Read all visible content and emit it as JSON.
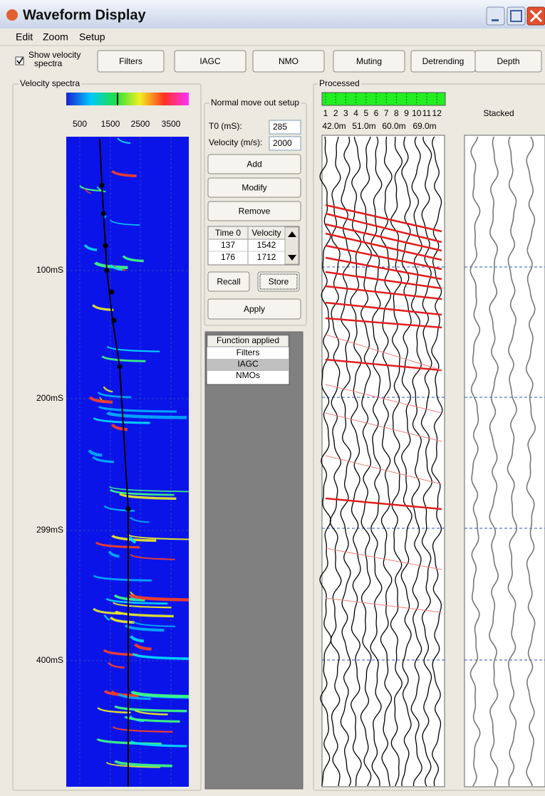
{
  "window": {
    "title": "Waveform Display"
  },
  "menu": [
    "Edit",
    "Zoom",
    "Setup"
  ],
  "toolbar": {
    "checkbox": "Show velocity spectra",
    "buttons": [
      "Filters",
      "IAGC",
      "NMO",
      "Muting",
      "Detrending",
      "Depth"
    ]
  },
  "velocity_spectra": {
    "title": "Velocity spectra",
    "velocity_labels": [
      500,
      1500,
      2500,
      3500
    ],
    "time_labels": [
      "100mS",
      "200mS",
      "299mS",
      "400mS"
    ]
  },
  "nmo_setup": {
    "title": "Normal move out setup",
    "fields": [
      {
        "label": "T0 (mS):",
        "value": 285
      },
      {
        "label": "Velocity (m/s):",
        "value": 2000
      }
    ],
    "buttons": [
      "Add",
      "Modify",
      "Remove"
    ],
    "table": {
      "header": [
        "Time 0",
        "Velocity"
      ],
      "rows": [
        [
          137,
          1542
        ],
        [
          176,
          1712
        ]
      ]
    },
    "recall": "Recall",
    "store": "Store",
    "apply": "Apply"
  },
  "functions": {
    "header": "Function applied",
    "items": [
      "Filters",
      "IAGC",
      "NMOs"
    ]
  },
  "processed": {
    "title": "Processed",
    "trace_numbers": [
      1,
      2,
      3,
      4,
      5,
      6,
      7,
      8,
      9,
      10,
      11,
      12
    ],
    "offsets": [
      "42.0m",
      "51.0m",
      "60.0m",
      "69.0m"
    ],
    "stacked_label": "Stacked"
  }
}
